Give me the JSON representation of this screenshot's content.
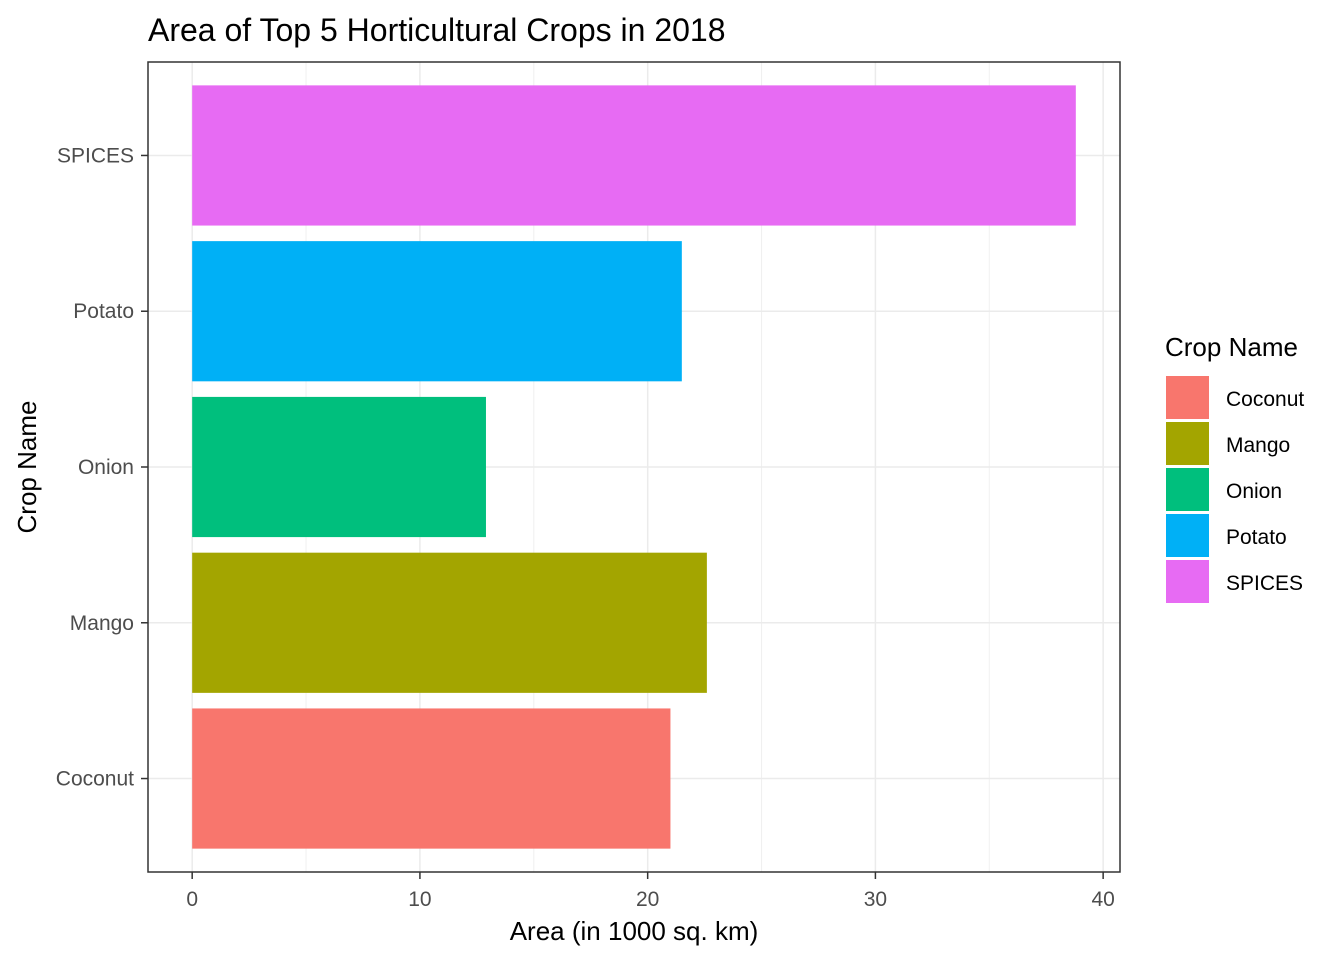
{
  "chart_data": {
    "type": "bar",
    "orientation": "horizontal",
    "title": "Area of Top 5 Horticultural Crops in 2018",
    "xlabel": "Area (in 1000 sq. km)",
    "ylabel": "Crop Name",
    "categories": [
      "Coconut",
      "Mango",
      "Onion",
      "Potato",
      "SPICES"
    ],
    "values": [
      21.0,
      22.6,
      12.9,
      21.5,
      38.8
    ],
    "colors": [
      "#F8766D",
      "#A3A500",
      "#00BF7D",
      "#00B0F6",
      "#E76BF3"
    ],
    "xlim": [
      -1.94,
      40.74
    ],
    "x_ticks": [
      0,
      10,
      20,
      30,
      40
    ],
    "x_tick_labels": [
      "0",
      "10",
      "20",
      "30",
      "40"
    ],
    "grid": true,
    "legend": {
      "title": "Crop Name",
      "position": "right",
      "entries": [
        "Coconut",
        "Mango",
        "Onion",
        "Potato",
        "SPICES"
      ]
    }
  }
}
